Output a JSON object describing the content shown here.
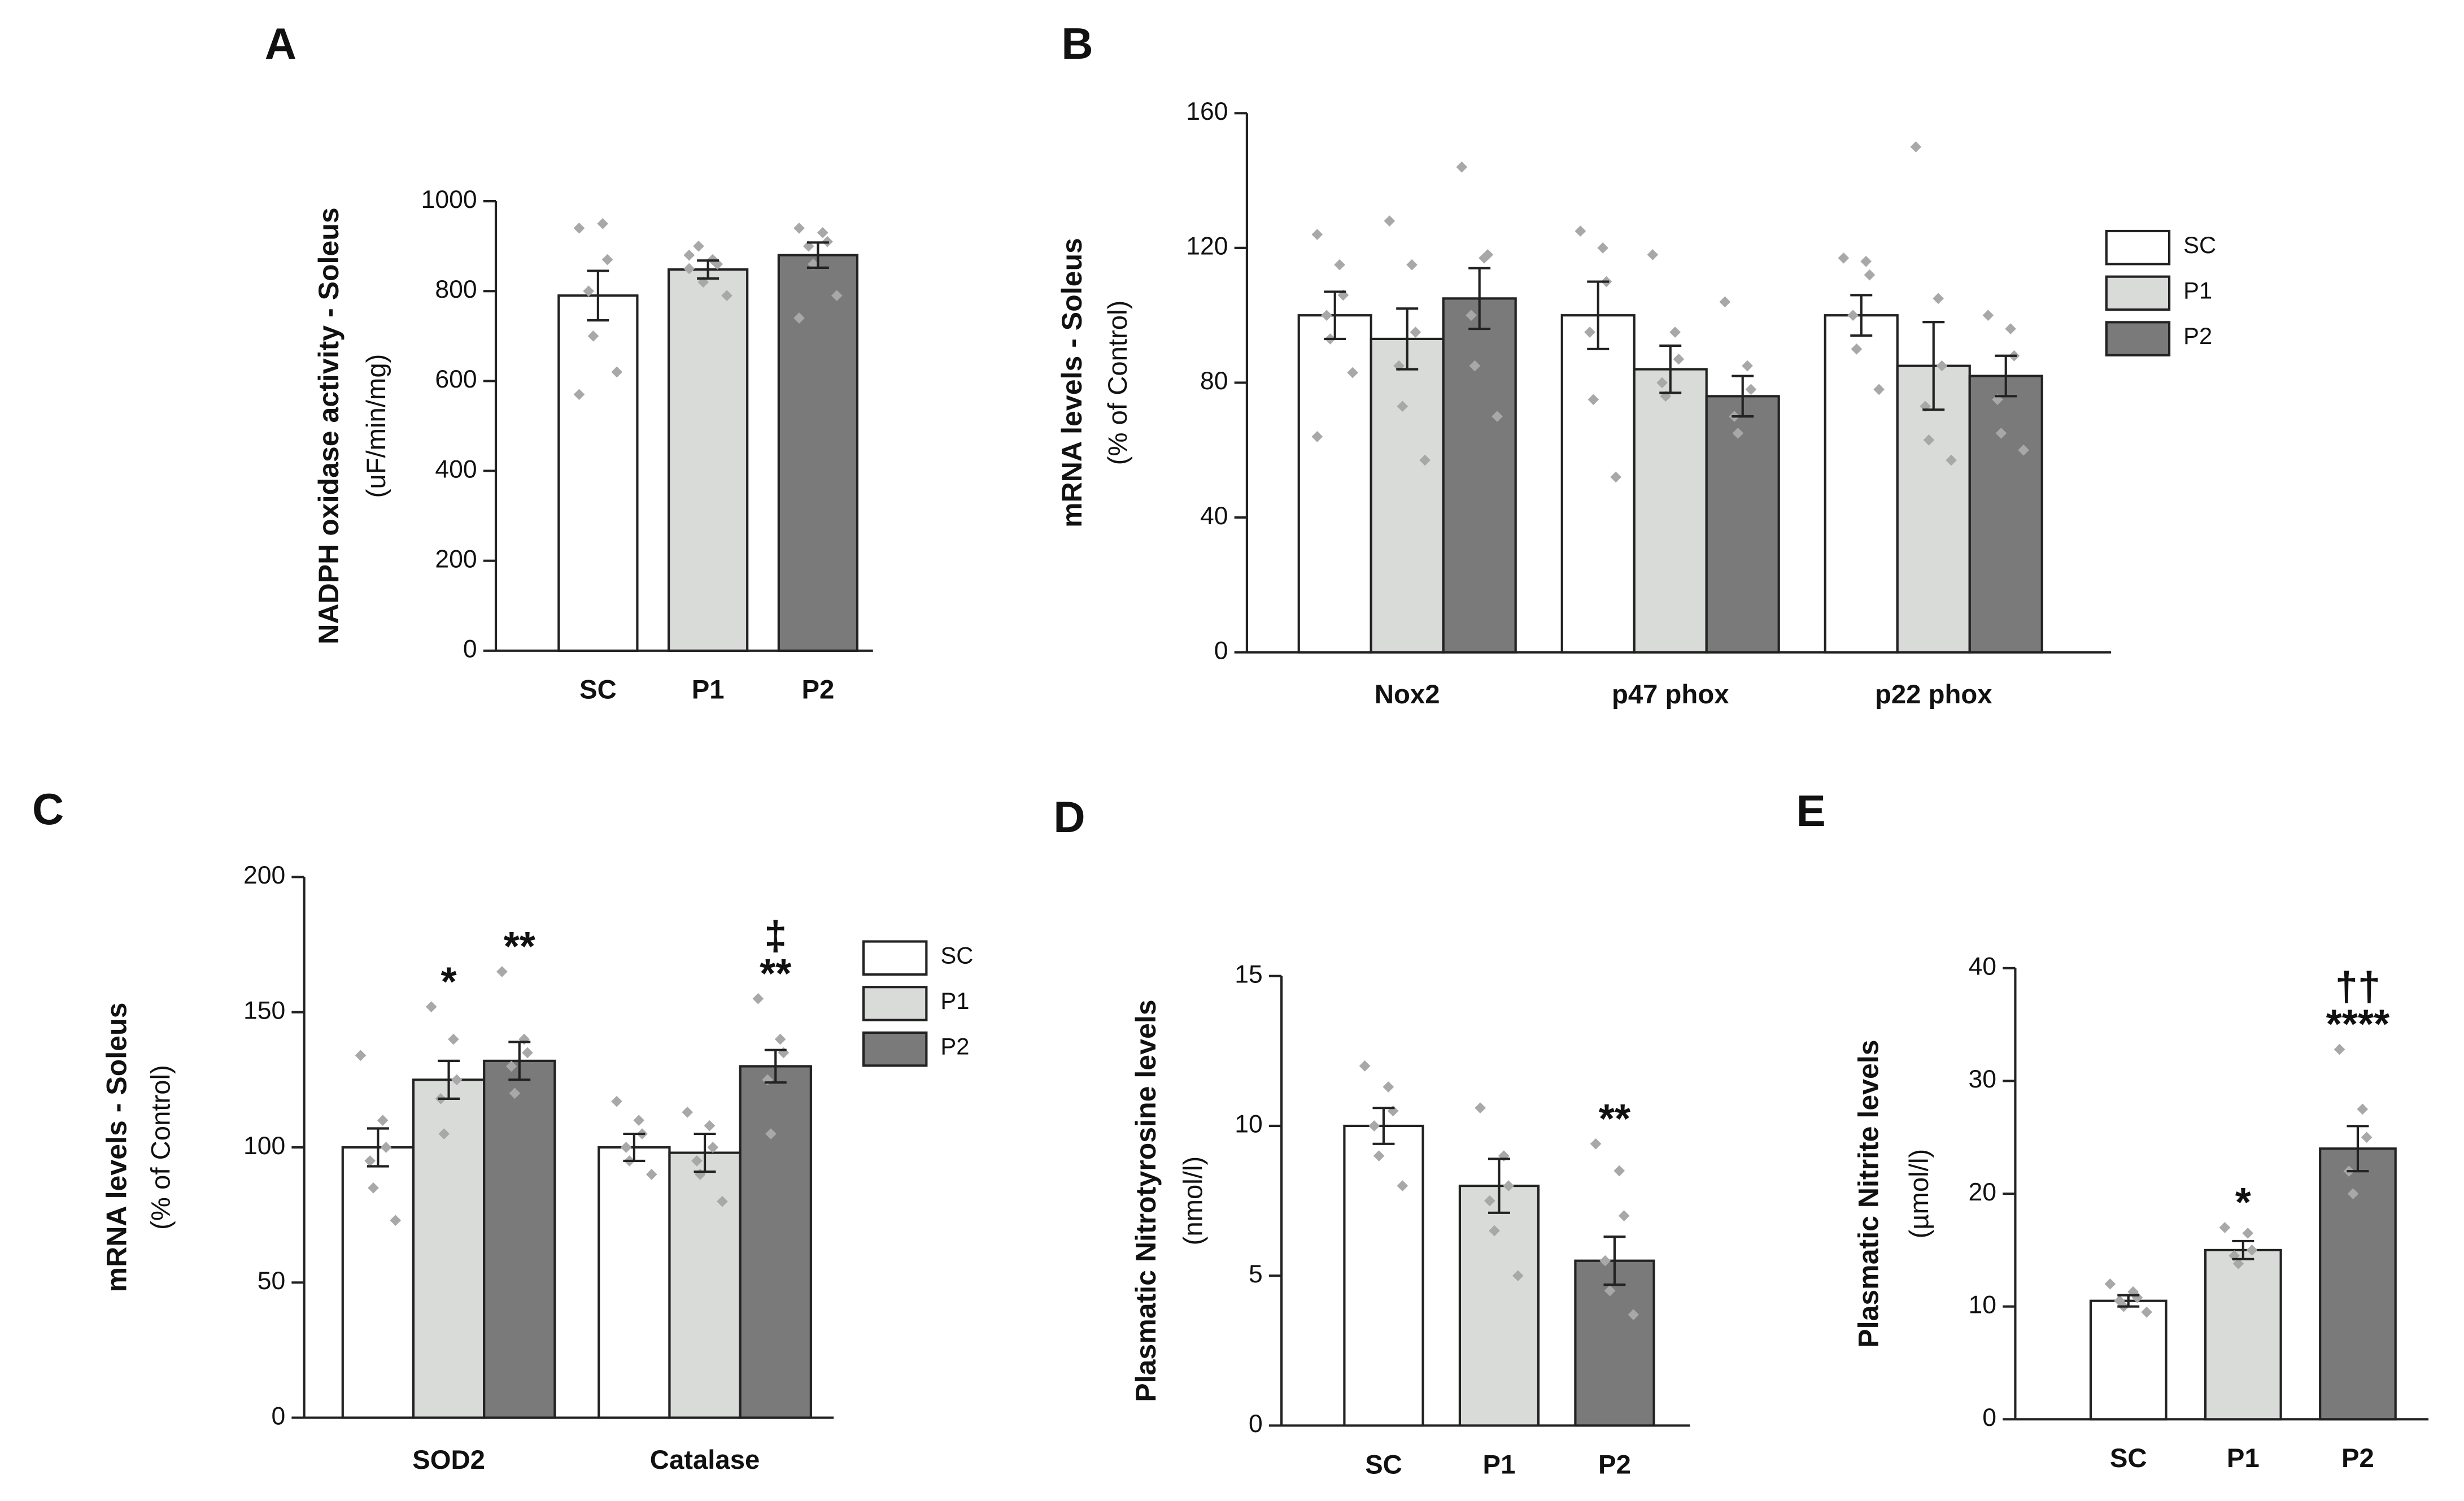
{
  "chart_data": [
    {
      "type": "bar",
      "label": "A",
      "ylabel": "NADPH oxidase activity - Soleus",
      "yunit": "(uF/min/mg)",
      "categories": [
        "SC",
        "P1",
        "P2"
      ],
      "values": [
        790,
        848,
        880
      ],
      "errors": [
        55,
        20,
        28
      ],
      "colors": [
        "#ffffff",
        "#d9dbd9",
        "#7a7a7a"
      ],
      "points": [
        [
          940,
          950,
          870,
          800,
          700,
          620,
          570
        ],
        [
          880,
          870,
          860,
          900,
          820,
          790,
          850
        ],
        [
          940,
          930,
          910,
          900,
          860,
          790,
          740
        ]
      ],
      "ylim": [
        0,
        1000
      ],
      "yticks": [
        0,
        200,
        400,
        600,
        800,
        1000
      ]
    },
    {
      "type": "grouped-bar",
      "label": "B",
      "ylabel": "mRNA levels - Soleus",
      "yunit": "(% of Control)",
      "categories": [
        "Nox2",
        "p47 phox",
        "p22 phox"
      ],
      "legend": "right",
      "series": [
        {
          "name": "SC",
          "color": "#ffffff",
          "values": [
            100,
            100,
            100
          ],
          "errors": [
            7,
            10,
            6
          ],
          "points": [
            [
              124,
              115,
              106,
              100,
              93,
              83,
              64
            ],
            [
              125,
              120,
              110,
              95,
              75,
              52
            ],
            [
              117,
              116,
              112,
              100,
              90,
              78
            ]
          ]
        },
        {
          "name": "P1",
          "color": "#d9dbd9",
          "values": [
            93,
            84,
            85
          ],
          "errors": [
            9,
            7,
            13
          ],
          "points": [
            [
              128,
              115,
              95,
              85,
              73,
              57
            ],
            [
              118,
              95,
              87,
              80,
              76
            ],
            [
              150,
              105,
              85,
              73,
              63,
              57
            ]
          ]
        },
        {
          "name": "P2",
          "color": "#7a7a7a",
          "values": [
            105,
            76,
            82
          ],
          "errors": [
            9,
            6,
            6
          ],
          "points": [
            [
              144,
              117,
              118,
              100,
              85,
              70
            ],
            [
              104,
              85,
              78,
              70,
              65
            ],
            [
              100,
              96,
              88,
              75,
              65,
              60
            ]
          ]
        }
      ],
      "ylim": [
        0,
        160
      ],
      "yticks": [
        0,
        40,
        80,
        120,
        160
      ]
    },
    {
      "type": "grouped-bar",
      "label": "C",
      "ylabel": "mRNA levels - Soleus",
      "yunit": "(% of Control)",
      "categories": [
        "SOD2",
        "Catalase"
      ],
      "legend": "right",
      "series": [
        {
          "name": "SC",
          "color": "#ffffff",
          "values": [
            100,
            100
          ],
          "errors": [
            7,
            5
          ],
          "points": [
            [
              134,
              110,
              100,
              95,
              85,
              73
            ],
            [
              117,
              110,
              105,
              100,
              95,
              90
            ]
          ]
        },
        {
          "name": "P1",
          "color": "#d9dbd9",
          "values": [
            125,
            98
          ],
          "errors": [
            7,
            7
          ],
          "points": [
            [
              152,
              140,
              125,
              118,
              105
            ],
            [
              113,
              108,
              100,
              95,
              90,
              80
            ]
          ],
          "annotations": [
            [
              "*"
            ],
            null
          ]
        },
        {
          "name": "P2",
          "color": "#7a7a7a",
          "values": [
            132,
            130
          ],
          "errors": [
            7,
            6
          ],
          "points": [
            [
              165,
              140,
              135,
              130,
              120
            ],
            [
              155,
              140,
              135,
              125,
              105
            ]
          ],
          "annotations": [
            [
              "**"
            ],
            [
              "‡",
              "**"
            ]
          ]
        }
      ],
      "ylim": [
        0,
        200
      ],
      "yticks": [
        0,
        50,
        100,
        150,
        200
      ]
    },
    {
      "type": "bar",
      "label": "D",
      "ylabel": "Plasmatic Nitrotyrosine levels",
      "yunit": "(nmol/l)",
      "categories": [
        "SC",
        "P1",
        "P2"
      ],
      "values": [
        10,
        8,
        5.5
      ],
      "errors": [
        0.6,
        0.9,
        0.8
      ],
      "colors": [
        "#ffffff",
        "#d9dbd9",
        "#7a7a7a"
      ],
      "points": [
        [
          12,
          11.3,
          10.5,
          10,
          9,
          8
        ],
        [
          10.6,
          9,
          8,
          7.5,
          6.5,
          5
        ],
        [
          9.4,
          8.5,
          7,
          5.5,
          4.5,
          3.7
        ]
      ],
      "annotations": [
        null,
        null,
        [
          "**"
        ]
      ],
      "ylim": [
        0,
        15
      ],
      "yticks": [
        0,
        5,
        10,
        15
      ]
    },
    {
      "type": "bar",
      "label": "E",
      "ylabel": "Plasmatic Nitrite levels",
      "yunit": "(µmol/l)",
      "categories": [
        "SC",
        "P1",
        "P2"
      ],
      "values": [
        10.5,
        15,
        24
      ],
      "errors": [
        0.5,
        0.8,
        2
      ],
      "colors": [
        "#ffffff",
        "#d9dbd9",
        "#7a7a7a"
      ],
      "points": [
        [
          12,
          11.3,
          10.8,
          10.5,
          10,
          9.5
        ],
        [
          17,
          16.5,
          15,
          14.5,
          13.8
        ],
        [
          32.8,
          27.5,
          25,
          22,
          20
        ]
      ],
      "annotations": [
        null,
        [
          "*"
        ],
        [
          "††",
          "****"
        ]
      ],
      "ylim": [
        0,
        40
      ],
      "yticks": [
        0,
        10,
        20,
        30,
        40
      ]
    }
  ]
}
